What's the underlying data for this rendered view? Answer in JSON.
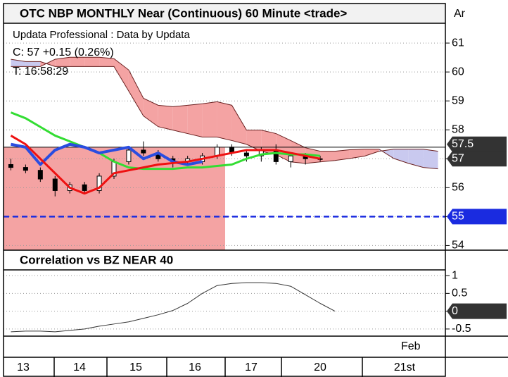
{
  "chart_data": [
    {
      "type": "candlestick",
      "title": "OTC NBP MONTHLY Near (Continuous) 60 Minute <trade>",
      "corner_label": "Ar",
      "info": [
        "Updata Professional : Data by Updata",
        "C: 57  +0.15 (0.26%)",
        "T: 16:58:29"
      ],
      "ylim": [
        53.84,
        61.66
      ],
      "yticks": [
        54,
        55,
        56,
        57,
        58,
        59,
        60,
        61
      ],
      "grid": true,
      "candles": {
        "open": [
          56.8,
          56.7,
          56.6,
          56.3,
          55.9,
          56.1,
          55.9,
          56.4,
          56.9,
          57.3,
          57.2,
          57.0,
          56.9,
          56.9,
          57.1,
          57.4,
          57.2,
          57.1,
          57.3,
          56.9,
          57.1,
          57.0
        ],
        "high": [
          57.0,
          56.8,
          56.7,
          56.4,
          56.2,
          56.2,
          56.5,
          57.0,
          57.4,
          57.6,
          57.3,
          57.1,
          57.1,
          57.2,
          57.5,
          57.5,
          57.3,
          57.4,
          57.5,
          57.2,
          57.2,
          57.1
        ],
        "low": [
          56.6,
          56.5,
          56.2,
          55.7,
          55.8,
          55.8,
          55.8,
          56.3,
          56.8,
          57.1,
          56.9,
          56.7,
          56.8,
          56.8,
          57.0,
          57.1,
          56.9,
          56.9,
          56.8,
          56.7,
          56.8,
          56.9
        ],
        "close": [
          56.7,
          56.6,
          56.3,
          55.9,
          56.1,
          55.9,
          56.4,
          56.9,
          57.3,
          57.2,
          57.0,
          56.9,
          57.0,
          57.1,
          57.4,
          57.2,
          57.1,
          57.3,
          56.9,
          57.1,
          57.0,
          57.0
        ]
      },
      "cloud": {
        "colors": [
          "#f4a3a3",
          "#c9c9ef"
        ],
        "span_a": [
          60.19,
          60.19,
          60.19,
          60.44,
          60.51,
          60.51,
          60.51,
          60.46,
          60.07,
          59.09,
          58.85,
          58.8,
          58.85,
          58.9,
          58.97,
          58.85,
          57.99,
          57.99,
          57.87,
          57.63,
          57.38,
          57.26,
          57.26,
          57.31,
          57.33,
          57.33,
          57.01,
          56.84,
          56.7,
          56.65
        ],
        "span_b": [
          60.44,
          60.36,
          60.36,
          60.19,
          60.19,
          60.19,
          60.19,
          60.19,
          59.34,
          58.48,
          58.11,
          57.99,
          57.87,
          57.75,
          57.75,
          57.63,
          57.5,
          57.26,
          57.14,
          56.89,
          56.84,
          56.89,
          56.94,
          57.01,
          57.09,
          57.26,
          57.33,
          57.33,
          57.33,
          57.26
        ]
      },
      "series": [
        {
          "color": "#33dd33",
          "width": 3,
          "values": [
            58.6,
            58.4,
            58.1,
            57.8,
            57.6,
            57.4,
            57.2,
            56.9,
            56.7,
            56.65,
            56.65,
            56.65,
            56.7,
            56.7,
            56.75,
            56.8,
            57.0,
            57.15,
            57.2,
            57.15,
            57.15,
            57.1
          ]
        },
        {
          "color": "#2a4de0",
          "width": 4,
          "values": [
            57.5,
            57.4,
            56.8,
            57.3,
            57.5,
            57.4,
            57.2,
            57.3,
            57.4,
            57.0,
            57.2,
            56.9,
            56.8,
            56.9
          ]
        },
        {
          "color": "#ee1111",
          "width": 3,
          "values": [
            57.8,
            57.5,
            57.0,
            56.5,
            56.0,
            55.8,
            56.0,
            56.5,
            56.6,
            56.7,
            56.8,
            56.85,
            56.9,
            57.0,
            57.1,
            57.2,
            57.3,
            57.3,
            57.3,
            57.2,
            57.1,
            57.0
          ]
        }
      ],
      "levels": [
        {
          "value": 57.4,
          "color": "#000000",
          "dash": false
        },
        {
          "value": 55,
          "color": "#1a2be0",
          "dash": true
        }
      ],
      "tags": [
        {
          "value": 57.5,
          "color": "#333333"
        },
        {
          "value": 57,
          "color": "#333333"
        },
        {
          "value": 55,
          "color": "#1a2be0"
        }
      ]
    },
    {
      "type": "line",
      "title": "Correlation vs BZ NEAR 40",
      "ylim": [
        -0.7,
        1.14
      ],
      "yticks": [
        1,
        0.5,
        0,
        -0.5
      ],
      "grid": true,
      "series": [
        {
          "color": "#333333",
          "width": 1,
          "values": [
            -0.58,
            -0.56,
            -0.56,
            -0.58,
            -0.54,
            -0.5,
            -0.42,
            -0.36,
            -0.3,
            -0.2,
            -0.1,
            0.02,
            0.22,
            0.5,
            0.72,
            0.78,
            0.8,
            0.8,
            0.78,
            0.7,
            0.46,
            0.22,
            0.0
          ]
        }
      ],
      "tags": [
        {
          "value": 0,
          "color": "#333333"
        }
      ]
    }
  ],
  "x_axis": {
    "month": "Feb",
    "days": [
      "13",
      "14",
      "15",
      "16",
      "17",
      "20",
      "21st"
    ]
  }
}
